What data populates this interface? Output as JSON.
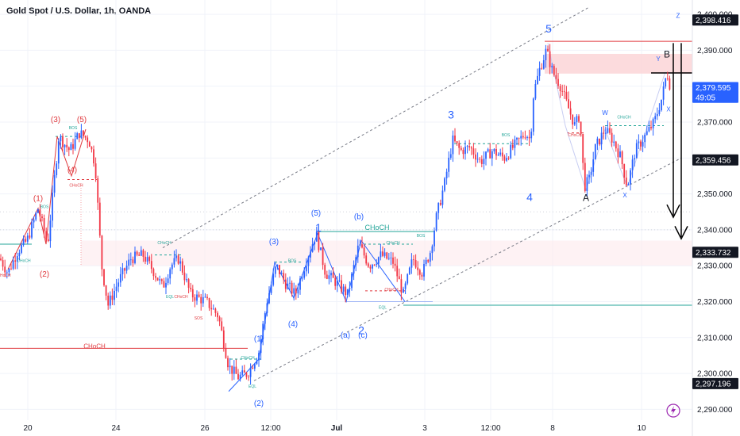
{
  "header": {
    "title": "Gold Spot / U.S. Dollar, 1h, OANDA"
  },
  "colors": {
    "up": "#2962ff",
    "down": "#f23645",
    "red_ann": "#e0393e",
    "green_ann": "#26a69a",
    "blue_ann": "#2962ff",
    "dark": "#131722",
    "zone": "#fbd5d7",
    "grid": "#f0f3fa",
    "channel": "#787b86"
  },
  "chart_data": {
    "type": "candlestick",
    "symbol": "Gold Spot / U.S. Dollar, 1h, OANDA",
    "ylim": [
      2287,
      2404
    ],
    "y_ticks": [
      "2,290.000",
      "2,300.000",
      "2,310.000",
      "2,320.000",
      "2,330.000",
      "2,340.000",
      "2,350.000",
      "2,360.000",
      "2,370.000",
      "2,380.000",
      "2,390.000",
      "2,400.000"
    ],
    "y_tick_values": [
      2290,
      2300,
      2310,
      2320,
      2330,
      2340,
      2350,
      2360,
      2370,
      2380,
      2390,
      2400
    ],
    "x_ticks": [
      "20",
      "24",
      "26",
      "12:00",
      "Jul",
      "3",
      "12:00",
      "8",
      "10"
    ],
    "price_tags": [
      {
        "text": "2,398.416",
        "y": 2398.416,
        "style": "dark"
      },
      {
        "text": "2,379.595",
        "y": 2379.595,
        "style": "blue"
      },
      {
        "text": "49:05",
        "y": 2376.9,
        "style": "blue"
      },
      {
        "text": "2,359.456",
        "y": 2359.456,
        "style": "dark"
      },
      {
        "text": "2,333.732",
        "y": 2333.732,
        "style": "dark"
      },
      {
        "text": "2,297.196",
        "y": 2297.196,
        "style": "dark"
      }
    ],
    "anchors": [
      {
        "t": 0,
        "p": 2332
      },
      {
        "t": 10,
        "p": 2328
      },
      {
        "t": 22,
        "p": 2334
      },
      {
        "t": 34,
        "p": 2337
      },
      {
        "t": 48,
        "p": 2346
      },
      {
        "t": 60,
        "p": 2336
      },
      {
        "t": 74,
        "p": 2366
      },
      {
        "t": 88,
        "p": 2362
      },
      {
        "t": 100,
        "p": 2367
      },
      {
        "t": 112,
        "p": 2365
      },
      {
        "t": 120,
        "p": 2358
      },
      {
        "t": 128,
        "p": 2330
      },
      {
        "t": 136,
        "p": 2319
      },
      {
        "t": 150,
        "p": 2326
      },
      {
        "t": 165,
        "p": 2332
      },
      {
        "t": 180,
        "p": 2333
      },
      {
        "t": 192,
        "p": 2329
      },
      {
        "t": 205,
        "p": 2324
      },
      {
        "t": 215,
        "p": 2330
      },
      {
        "t": 225,
        "p": 2332
      },
      {
        "t": 240,
        "p": 2322
      },
      {
        "t": 260,
        "p": 2320
      },
      {
        "t": 275,
        "p": 2316
      },
      {
        "t": 288,
        "p": 2302
      },
      {
        "t": 300,
        "p": 2299
      },
      {
        "t": 312,
        "p": 2300
      },
      {
        "t": 326,
        "p": 2306
      },
      {
        "t": 336,
        "p": 2320
      },
      {
        "t": 348,
        "p": 2330
      },
      {
        "t": 360,
        "p": 2325
      },
      {
        "t": 372,
        "p": 2322
      },
      {
        "t": 385,
        "p": 2331
      },
      {
        "t": 398,
        "p": 2339
      },
      {
        "t": 410,
        "p": 2328
      },
      {
        "t": 425,
        "p": 2325
      },
      {
        "t": 438,
        "p": 2322
      },
      {
        "t": 452,
        "p": 2336
      },
      {
        "t": 465,
        "p": 2330
      },
      {
        "t": 480,
        "p": 2333
      },
      {
        "t": 495,
        "p": 2331
      },
      {
        "t": 508,
        "p": 2322
      },
      {
        "t": 520,
        "p": 2332
      },
      {
        "t": 532,
        "p": 2328
      },
      {
        "t": 542,
        "p": 2334
      },
      {
        "t": 550,
        "p": 2344
      },
      {
        "t": 560,
        "p": 2353
      },
      {
        "t": 570,
        "p": 2365
      },
      {
        "t": 580,
        "p": 2362
      },
      {
        "t": 592,
        "p": 2363
      },
      {
        "t": 605,
        "p": 2359
      },
      {
        "t": 620,
        "p": 2362
      },
      {
        "t": 635,
        "p": 2360
      },
      {
        "t": 650,
        "p": 2364
      },
      {
        "t": 662,
        "p": 2367
      },
      {
        "t": 668,
        "p": 2365
      },
      {
        "t": 672,
        "p": 2378
      },
      {
        "t": 680,
        "p": 2385
      },
      {
        "t": 688,
        "p": 2390
      },
      {
        "t": 696,
        "p": 2384
      },
      {
        "t": 706,
        "p": 2380
      },
      {
        "t": 714,
        "p": 2375
      },
      {
        "t": 724,
        "p": 2369
      },
      {
        "t": 730,
        "p": 2372
      },
      {
        "t": 736,
        "p": 2352
      },
      {
        "t": 742,
        "p": 2354
      },
      {
        "t": 750,
        "p": 2363
      },
      {
        "t": 762,
        "p": 2368
      },
      {
        "t": 772,
        "p": 2365
      },
      {
        "t": 782,
        "p": 2360
      },
      {
        "t": 790,
        "p": 2352
      },
      {
        "t": 800,
        "p": 2362
      },
      {
        "t": 812,
        "p": 2366
      },
      {
        "t": 824,
        "p": 2370
      },
      {
        "t": 834,
        "p": 2377
      },
      {
        "t": 840,
        "p": 2384
      },
      {
        "t": 846,
        "p": 2378
      }
    ],
    "annotations": [
      {
        "text": "(3)",
        "t": 70,
        "p": 2370,
        "c": "red_ann",
        "s": 10
      },
      {
        "text": "(5)",
        "t": 103,
        "p": 2370,
        "c": "red_ann",
        "s": 10
      },
      {
        "text": "BOS",
        "t": 92,
        "p": 2368,
        "c": "green_ann",
        "s": 5
      },
      {
        "text": "(4)",
        "t": 91,
        "p": 2356,
        "c": "red_ann",
        "s": 10
      },
      {
        "text": "CHoCH",
        "t": 96,
        "p": 2352,
        "c": "red_ann",
        "s": 5
      },
      {
        "text": "(1)",
        "t": 48,
        "p": 2348,
        "c": "red_ann",
        "s": 10
      },
      {
        "text": "BOS",
        "t": 56,
        "p": 2346,
        "c": "green_ann",
        "s": 5
      },
      {
        "text": "(2)",
        "t": 56,
        "p": 2327,
        "c": "red_ann",
        "s": 10
      },
      {
        "text": "CHoCH",
        "t": 30,
        "p": 2331,
        "c": "green_ann",
        "s": 5
      },
      {
        "text": "CHoCH",
        "t": 5,
        "p": 2327,
        "c": "red_ann",
        "s": 5
      },
      {
        "text": "CHoCH",
        "t": 119,
        "p": 2307,
        "c": "red_ann",
        "s": 8
      },
      {
        "text": "CHoCH",
        "t": 207,
        "p": 2336,
        "c": "green_ann",
        "s": 5
      },
      {
        "text": "EQL",
        "t": 214,
        "p": 2321,
        "c": "green_ann",
        "s": 5
      },
      {
        "text": "CHoCH",
        "t": 228,
        "p": 2321,
        "c": "red_ann",
        "s": 5
      },
      {
        "text": "SOS",
        "t": 250,
        "p": 2315,
        "c": "red_ann",
        "s": 5
      },
      {
        "text": "CHoCH",
        "t": 312,
        "p": 2304,
        "c": "green_ann",
        "s": 5
      },
      {
        "text": "EQL",
        "t": 318,
        "p": 2296,
        "c": "green_ann",
        "s": 5
      },
      {
        "text": "(1)",
        "t": 326,
        "p": 2309,
        "c": "blue_ann",
        "s": 10
      },
      {
        "text": "(2)",
        "t": 326,
        "p": 2291,
        "c": "blue_ann",
        "s": 10
      },
      {
        "text": "(3)",
        "t": 345,
        "p": 2336,
        "c": "blue_ann",
        "s": 10
      },
      {
        "text": "(4)",
        "t": 369,
        "p": 2313,
        "c": "blue_ann",
        "s": 10
      },
      {
        "text": "BOS",
        "t": 368,
        "p": 2331,
        "c": "green_ann",
        "s": 5
      },
      {
        "text": "(5)",
        "t": 398,
        "p": 2344,
        "c": "blue_ann",
        "s": 10
      },
      {
        "text": "1",
        "t": 401,
        "p": 2339.5,
        "c": "blue_ann",
        "s": 14
      },
      {
        "text": "(b)",
        "t": 452,
        "p": 2343,
        "c": "blue_ann",
        "s": 10
      },
      {
        "text": "CHoCH",
        "t": 475,
        "p": 2340,
        "c": "green_ann",
        "s": 9
      },
      {
        "text": "CHoCH",
        "t": 495,
        "p": 2336,
        "c": "green_ann",
        "s": 5
      },
      {
        "text": "BOS",
        "t": 530,
        "p": 2338,
        "c": "green_ann",
        "s": 5
      },
      {
        "text": "CHoCH",
        "t": 493,
        "p": 2323,
        "c": "red_ann",
        "s": 5
      },
      {
        "text": "EQL",
        "t": 482,
        "p": 2318,
        "c": "green_ann",
        "s": 5
      },
      {
        "text": "(a)",
        "t": 435,
        "p": 2310,
        "c": "blue_ann",
        "s": 10
      },
      {
        "text": "2",
        "t": 455,
        "p": 2311,
        "c": "blue_ann",
        "s": 14
      },
      {
        "text": "(c)",
        "t": 457,
        "p": 2310,
        "c": "blue_ann",
        "s": 10
      },
      {
        "text": "3",
        "t": 568,
        "p": 2371,
        "c": "blue_ann",
        "s": 14
      },
      {
        "text": "BOS",
        "t": 637,
        "p": 2366,
        "c": "green_ann",
        "s": 5
      },
      {
        "text": "4",
        "t": 667,
        "p": 2348,
        "c": "blue_ann",
        "s": 14
      },
      {
        "text": "5",
        "t": 691,
        "p": 2395,
        "c": "blue_ann",
        "s": 14
      },
      {
        "text": "CHoCH",
        "t": 724,
        "p": 2366,
        "c": "red_ann",
        "s": 5
      },
      {
        "text": "A",
        "t": 738,
        "p": 2348,
        "c": "dark",
        "s": 12
      },
      {
        "text": "W",
        "t": 762,
        "p": 2372,
        "c": "blue_ann",
        "s": 8
      },
      {
        "text": "CHoCH",
        "t": 786,
        "p": 2371,
        "c": "green_ann",
        "s": 5
      },
      {
        "text": "X",
        "t": 787,
        "p": 2349,
        "c": "blue_ann",
        "s": 8
      },
      {
        "text": "Y",
        "t": 829,
        "p": 2387,
        "c": "blue_ann",
        "s": 8
      },
      {
        "text": "B",
        "t": 840,
        "p": 2388,
        "c": "dark",
        "s": 12
      },
      {
        "text": "X",
        "t": 842,
        "p": 2373,
        "c": "blue_ann",
        "s": 8
      },
      {
        "text": "Z",
        "t": 854,
        "p": 2399,
        "c": "blue_ann",
        "s": 8
      }
    ]
  }
}
